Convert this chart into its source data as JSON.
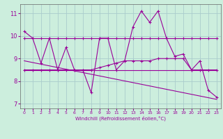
{
  "xlabel": "Windchill (Refroidissement éolien,°C)",
  "bg_color": "#cceedd",
  "grid_color": "#aacccc",
  "line_color": "#990099",
  "xlim": [
    -0.5,
    23.5
  ],
  "ylim": [
    6.8,
    11.4
  ],
  "xticks": [
    0,
    1,
    2,
    3,
    4,
    5,
    6,
    7,
    8,
    9,
    10,
    11,
    12,
    13,
    14,
    15,
    16,
    17,
    18,
    19,
    20,
    21,
    22,
    23
  ],
  "yticks": [
    7,
    8,
    9,
    10,
    11
  ],
  "line1_x": [
    0,
    1,
    2,
    3,
    4,
    5,
    6,
    7,
    8,
    9,
    10,
    11,
    12,
    13,
    14,
    15,
    16,
    17,
    18,
    19,
    20,
    21,
    22,
    23
  ],
  "line1_y": [
    10.2,
    9.9,
    8.8,
    9.9,
    8.5,
    9.5,
    8.5,
    8.5,
    7.5,
    9.9,
    9.9,
    8.5,
    8.9,
    10.4,
    11.1,
    10.6,
    11.1,
    9.9,
    9.1,
    9.2,
    8.5,
    8.9,
    7.6,
    7.3
  ],
  "line2_x": [
    0,
    1,
    2,
    3,
    4,
    5,
    6,
    7,
    8,
    9,
    10,
    11,
    12,
    13,
    14,
    15,
    16,
    17,
    18,
    19,
    20,
    21,
    22,
    23
  ],
  "line2_y": [
    9.9,
    9.9,
    9.9,
    9.9,
    9.9,
    9.9,
    9.9,
    9.9,
    9.9,
    9.9,
    9.9,
    9.9,
    9.9,
    9.9,
    9.9,
    9.9,
    9.9,
    9.9,
    9.9,
    9.9,
    9.9,
    9.9,
    9.9,
    9.9
  ],
  "line3_x": [
    0,
    1,
    2,
    3,
    4,
    5,
    6,
    7,
    8,
    9,
    10,
    11,
    12,
    13,
    14,
    15,
    16,
    17,
    18,
    19,
    20,
    21,
    22,
    23
  ],
  "line3_y": [
    8.5,
    8.5,
    8.5,
    8.5,
    8.5,
    8.5,
    8.5,
    8.5,
    8.5,
    8.6,
    8.7,
    8.8,
    8.9,
    8.9,
    8.9,
    8.9,
    9.0,
    9.0,
    9.0,
    9.0,
    8.5,
    8.5,
    8.5,
    8.5
  ],
  "line4_x": [
    0,
    23
  ],
  "line4_y": [
    8.9,
    7.2
  ],
  "line5_x": [
    0,
    1,
    2,
    3,
    4,
    5,
    6,
    7,
    8,
    9,
    10,
    11,
    12,
    13,
    14,
    15,
    16,
    17,
    18,
    19,
    20,
    21,
    22,
    23
  ],
  "line5_y": [
    8.5,
    8.5,
    8.5,
    8.5,
    8.5,
    8.5,
    8.5,
    8.5,
    8.5,
    8.5,
    8.5,
    8.5,
    8.5,
    8.5,
    8.5,
    8.5,
    8.5,
    8.5,
    8.5,
    8.5,
    8.5,
    8.5,
    8.5,
    8.5
  ]
}
